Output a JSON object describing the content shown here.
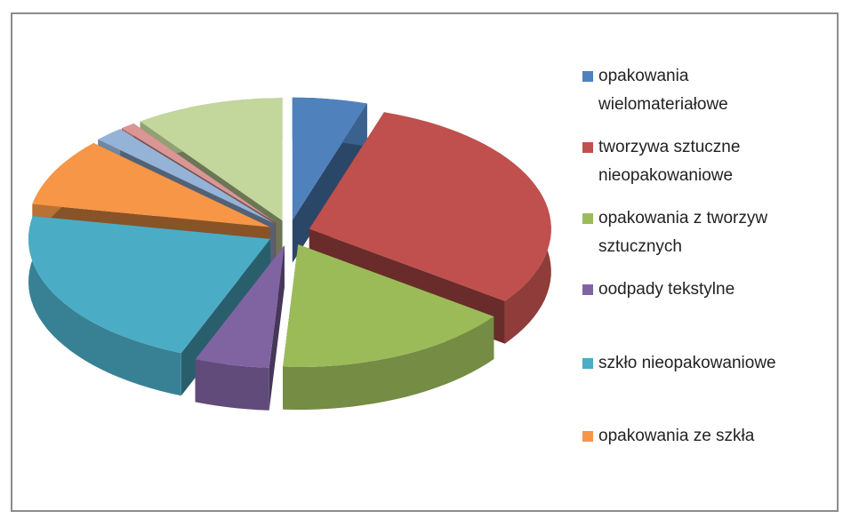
{
  "chart_data": {
    "type": "pie3d",
    "categories": [
      "opakowania wielomateriałowe",
      "tworzywa sztuczne nieopakowaniowe",
      "opakowania z tworzyw sztucznych",
      "oodpady tekstylne",
      "szkło nieopakowaniowe",
      "opakowania ze szkła",
      null,
      null,
      null
    ],
    "values": [
      5,
      30,
      16,
      5,
      22,
      9,
      2,
      1,
      10
    ],
    "colors": [
      "#4f81bd",
      "#c0504d",
      "#9bbb59",
      "#8064a2",
      "#4bacc6",
      "#f79646",
      "#95b3d7",
      "#d99694",
      "#c3d69b"
    ],
    "legend": "right"
  }
}
